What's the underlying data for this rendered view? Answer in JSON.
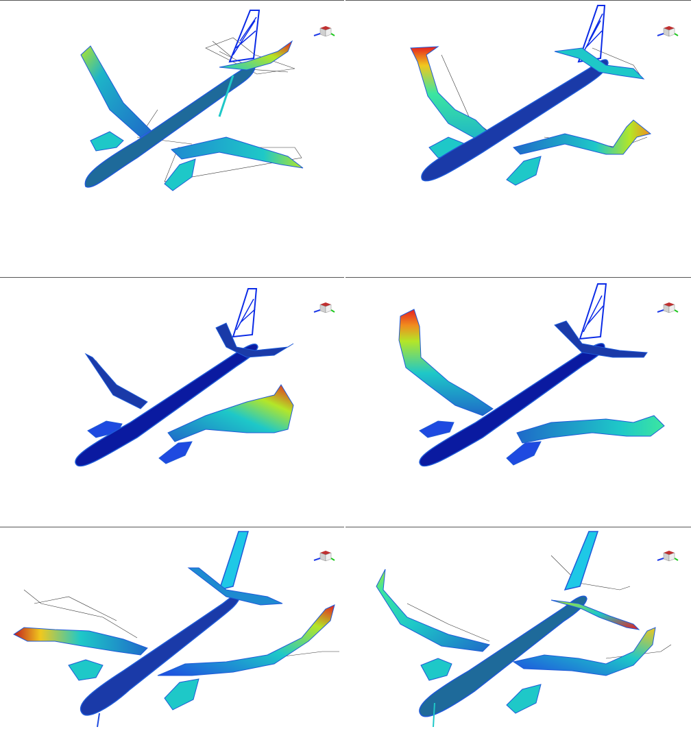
{
  "figure": {
    "panels": [
      {
        "id": "mode-1"
      },
      {
        "id": "mode-2"
      },
      {
        "id": "mode-3"
      },
      {
        "id": "mode-4"
      },
      {
        "id": "mode-5"
      },
      {
        "id": "mode-6"
      }
    ],
    "colormap": [
      "#0a1aa0",
      "#1e5ad8",
      "#1ec8e6",
      "#3ce6a0",
      "#b4e628",
      "#f0c81e",
      "#e61e1e"
    ],
    "icons": {
      "orientation_triad": "axis-triad-icon"
    }
  }
}
